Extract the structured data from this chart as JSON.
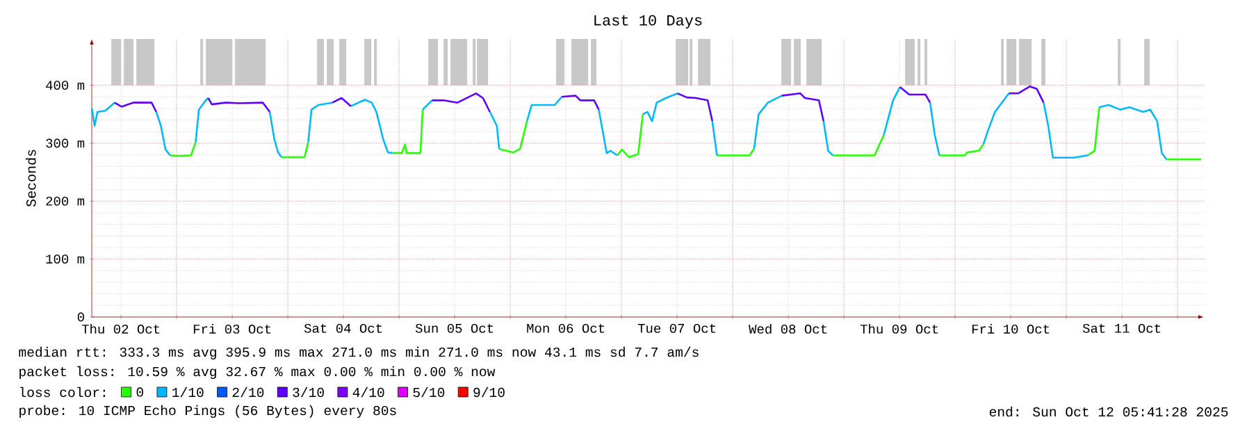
{
  "chart_data": {
    "type": "line",
    "title": "Last 10 Days",
    "ylabel": "Seconds",
    "legend_title": "loss color:",
    "legend": "bottom",
    "grid": true,
    "xlim": [
      "2025-10-02T05:41",
      "2025-10-12T05:41"
    ],
    "xticks": [
      {
        "value": "2025-10-02T12:00",
        "label": "Thu 02 Oct"
      },
      {
        "value": "2025-10-03T12:00",
        "label": "Fri 03 Oct"
      },
      {
        "value": "2025-10-04T12:00",
        "label": "Sat 04 Oct"
      },
      {
        "value": "2025-10-05T12:00",
        "label": "Sun 05 Oct"
      },
      {
        "value": "2025-10-06T12:00",
        "label": "Mon 06 Oct"
      },
      {
        "value": "2025-10-07T12:00",
        "label": "Tue 07 Oct"
      },
      {
        "value": "2025-10-08T12:00",
        "label": "Wed 08 Oct"
      },
      {
        "value": "2025-10-09T12:00",
        "label": "Thu 09 Oct"
      },
      {
        "value": "2025-10-10T12:00",
        "label": "Fri 10 Oct"
      },
      {
        "value": "2025-10-11T12:00",
        "label": "Sat 11 Oct"
      },
      {
        "value": "2025-10-03T00:00",
        "label": null
      },
      {
        "value": "2025-10-04T00:00",
        "label": null
      },
      {
        "value": "2025-10-05T00:00",
        "label": null
      },
      {
        "value": "2025-10-06T00:00",
        "label": null
      },
      {
        "value": "2025-10-07T00:00",
        "label": null
      },
      {
        "value": "2025-10-08T00:00",
        "label": null
      },
      {
        "value": "2025-10-09T00:00",
        "label": null
      },
      {
        "value": "2025-10-10T00:00",
        "label": null
      },
      {
        "value": "2025-10-11T00:00",
        "label": null
      },
      {
        "value": "2025-10-12T00:00",
        "label": null
      }
    ],
    "ylim": [
      0,
      480
    ],
    "yticks": [
      0,
      {
        "value": 100,
        "label": "100 m"
      },
      {
        "value": 200,
        "label": "200 m"
      },
      {
        "value": 300,
        "label": "300 m"
      },
      {
        "value": 400,
        "label": "400 m"
      }
    ],
    "x": [
      "2025-10-02T05:42",
      "2025-10-02T06:18",
      "2025-10-02T06:54",
      "2025-10-02T08:36",
      "2025-10-02T10:36",
      "2025-10-02T12:06",
      "2025-10-02T14:36",
      "2025-10-02T18:36",
      "2025-10-02T19:36",
      "2025-10-02T20:36",
      "2025-10-02T21:36",
      "2025-10-02T22:36",
      "2025-10-03T00:36",
      "2025-10-03T03:06",
      "2025-10-03T04:06",
      "2025-10-03T04:48",
      "2025-10-03T06:06",
      "2025-10-03T06:48",
      "2025-10-03T07:36",
      "2025-10-03T10:36",
      "2025-10-03T13:36",
      "2025-10-03T18:36",
      "2025-10-03T20:06",
      "2025-10-03T21:06",
      "2025-10-03T21:54",
      "2025-10-03T22:36",
      "2025-10-04T03:36",
      "2025-10-04T04:24",
      "2025-10-04T05:06",
      "2025-10-04T06:36",
      "2025-10-04T09:36",
      "2025-10-04T11:36",
      "2025-10-04T13:36",
      "2025-10-04T16:36",
      "2025-10-04T18:06",
      "2025-10-04T19:06",
      "2025-10-04T20:36",
      "2025-10-04T21:36",
      "2025-10-04T22:36",
      "2025-10-05T00:36",
      "2025-10-05T01:18",
      "2025-10-05T01:36",
      "2025-10-05T04:36",
      "2025-10-05T05:06",
      "2025-10-05T07:06",
      "2025-10-05T09:36",
      "2025-10-05T11:06",
      "2025-10-05T12:36",
      "2025-10-05T16:36",
      "2025-10-05T18:06",
      "2025-10-05T19:36",
      "2025-10-05T21:06",
      "2025-10-05T21:36",
      "2025-10-06T00:36",
      "2025-10-06T02:06",
      "2025-10-06T03:36",
      "2025-10-06T04:36",
      "2025-10-06T09:36",
      "2025-10-06T11:06",
      "2025-10-06T14:06",
      "2025-10-06T15:06",
      "2025-10-06T18:06",
      "2025-10-06T19:06",
      "2025-10-06T20:06",
      "2025-10-06T20:48",
      "2025-10-06T21:36",
      "2025-10-06T23:06",
      "2025-10-07T00:06",
      "2025-10-07T01:36",
      "2025-10-07T03:36",
      "2025-10-07T04:36",
      "2025-10-07T05:36",
      "2025-10-07T06:36",
      "2025-10-07T07:36",
      "2025-10-07T09:36",
      "2025-10-07T12:06",
      "2025-10-07T14:06",
      "2025-10-07T16:06",
      "2025-10-07T18:36",
      "2025-10-07T19:36",
      "2025-10-07T20:36",
      "2025-10-08T03:36",
      "2025-10-08T04:36",
      "2025-10-08T05:36",
      "2025-10-08T07:36",
      "2025-10-08T10:36",
      "2025-10-08T14:36",
      "2025-10-08T15:36",
      "2025-10-08T18:36",
      "2025-10-08T19:36",
      "2025-10-08T20:36",
      "2025-10-08T21:36",
      "2025-10-09T06:36",
      "2025-10-09T08:36",
      "2025-10-09T10:36",
      "2025-10-09T12:06",
      "2025-10-09T14:06",
      "2025-10-09T17:36",
      "2025-10-09T18:36",
      "2025-10-09T19:36",
      "2025-10-09T20:36",
      "2025-10-10T02:06",
      "2025-10-10T02:36",
      "2025-10-10T05:06",
      "2025-10-10T06:06",
      "2025-10-10T07:06",
      "2025-10-10T08:36",
      "2025-10-10T11:36",
      "2025-10-10T13:36",
      "2025-10-10T16:06",
      "2025-10-10T17:36",
      "2025-10-10T19:06",
      "2025-10-10T20:06",
      "2025-10-10T21:06",
      "2025-10-11T01:36",
      "2025-10-11T04:36",
      "2025-10-11T06:06",
      "2025-10-11T07:06",
      "2025-10-11T09:06",
      "2025-10-11T11:36",
      "2025-10-11T13:36",
      "2025-10-11T16:36",
      "2025-10-11T18:06",
      "2025-10-11T19:36",
      "2025-10-11T20:36",
      "2025-10-11T21:36",
      "2025-10-12T05:06"
    ],
    "series": [
      {
        "name": "0",
        "color": "#26ff00",
        "values": [
          null,
          null,
          null,
          null,
          null,
          null,
          null,
          null,
          null,
          null,
          null,
          279,
          278,
          279,
          302,
          null,
          null,
          null,
          null,
          null,
          null,
          null,
          null,
          null,
          null,
          276,
          276,
          302,
          null,
          null,
          null,
          null,
          null,
          null,
          null,
          null,
          null,
          null,
          283,
          283,
          298,
          283,
          283,
          358,
          null,
          null,
          null,
          null,
          null,
          null,
          null,
          null,
          290,
          284,
          290,
          338,
          null,
          null,
          null,
          null,
          null,
          null,
          null,
          null,
          null,
          null,
          279,
          289,
          276,
          281,
          350,
          null,
          null,
          null,
          null,
          null,
          null,
          null,
          null,
          null,
          279,
          279,
          290,
          null,
          null,
          null,
          null,
          null,
          null,
          null,
          null,
          279,
          279,
          314,
          null,
          null,
          null,
          null,
          null,
          null,
          279,
          279,
          284,
          287,
          298,
          null,
          null,
          null,
          null,
          null,
          null,
          null,
          null,
          null,
          null,
          279,
          287,
          362,
          null,
          null,
          null,
          null,
          null,
          null,
          null,
          272,
          272
        ]
      },
      {
        "name": "1/10",
        "color": "#00b8ff",
        "values": [
          360,
          330,
          354,
          356,
          370,
          null,
          null,
          null,
          354,
          330,
          289,
          279,
          null,
          null,
          302,
          358,
          372,
          378,
          null,
          null,
          null,
          null,
          354,
          306,
          284,
          276,
          null,
          302,
          358,
          366,
          370,
          null,
          364,
          375,
          370,
          354,
          306,
          284,
          283,
          null,
          null,
          null,
          null,
          358,
          374,
          null,
          null,
          null,
          null,
          null,
          354,
          330,
          290,
          null,
          null,
          338,
          366,
          366,
          380,
          null,
          null,
          null,
          358,
          314,
          283,
          287,
          279,
          null,
          null,
          null,
          350,
          354,
          338,
          370,
          378,
          386,
          null,
          null,
          null,
          338,
          279,
          null,
          290,
          350,
          370,
          382,
          null,
          null,
          null,
          338,
          287,
          279,
          null,
          314,
          374,
          397,
          null,
          null,
          370,
          314,
          279,
          null,
          null,
          null,
          298,
          322,
          354,
          386,
          null,
          null,
          null,
          370,
          330,
          275,
          275,
          279,
          null,
          362,
          366,
          358,
          362,
          354,
          358,
          338,
          283,
          272,
          null
        ]
      },
      {
        "name": "2/10",
        "color": "#0059ff",
        "values": [
          null,
          null,
          null,
          null,
          null,
          null,
          null,
          null,
          null,
          null,
          null,
          null,
          null,
          null,
          null,
          null,
          null,
          null,
          null,
          null,
          null,
          null,
          null,
          null,
          null,
          null,
          null,
          null,
          null,
          null,
          null,
          null,
          null,
          null,
          null,
          null,
          null,
          null,
          null,
          null,
          null,
          null,
          null,
          null,
          null,
          null,
          null,
          null,
          null,
          null,
          null,
          null,
          null,
          null,
          null,
          null,
          null,
          null,
          null,
          null,
          null,
          null,
          null,
          null,
          null,
          null,
          null,
          null,
          null,
          null,
          null,
          null,
          null,
          null,
          null,
          null,
          null,
          null,
          null,
          null,
          null,
          null,
          null,
          null,
          null,
          null,
          null,
          null,
          null,
          null,
          null,
          null,
          null,
          null,
          null,
          null,
          null,
          null,
          null,
          null,
          null,
          null,
          null,
          null,
          null,
          null,
          null,
          null,
          null,
          null,
          null,
          null,
          null,
          null,
          null,
          null,
          null,
          null,
          null,
          null,
          null,
          null,
          null,
          null,
          null,
          null,
          null
        ]
      },
      {
        "name": "3/10",
        "color": "#5e00ff",
        "values": [
          null,
          null,
          null,
          null,
          370,
          363,
          370,
          370,
          354,
          null,
          null,
          null,
          null,
          null,
          null,
          null,
          null,
          378,
          367,
          370,
          369,
          370,
          354,
          null,
          null,
          null,
          null,
          null,
          null,
          null,
          370,
          378,
          364,
          null,
          null,
          null,
          null,
          null,
          null,
          null,
          null,
          null,
          null,
          null,
          374,
          374,
          372,
          370,
          386,
          378,
          354,
          null,
          null,
          null,
          null,
          null,
          null,
          null,
          380,
          382,
          374,
          374,
          358,
          null,
          null,
          null,
          null,
          null,
          null,
          null,
          null,
          null,
          null,
          null,
          null,
          386,
          379,
          378,
          374,
          338,
          null,
          null,
          null,
          null,
          null,
          382,
          386,
          378,
          374,
          338,
          null,
          null,
          null,
          null,
          null,
          397,
          384,
          384,
          370,
          null,
          null,
          null,
          null,
          null,
          null,
          null,
          null,
          386,
          386,
          398,
          394,
          370,
          null,
          null,
          null,
          null,
          null,
          null,
          null,
          null,
          null,
          null,
          null,
          null,
          null,
          null,
          null
        ]
      },
      {
        "name": "4/10",
        "color": "#7e00ff",
        "values": [
          null,
          null,
          null,
          null,
          null,
          null,
          null,
          null,
          null,
          null,
          null,
          null,
          null,
          null,
          null,
          null,
          null,
          null,
          null,
          null,
          null,
          null,
          null,
          null,
          null,
          null,
          null,
          null,
          null,
          null,
          null,
          null,
          null,
          null,
          null,
          null,
          null,
          null,
          null,
          null,
          null,
          null,
          null,
          null,
          null,
          null,
          null,
          null,
          null,
          null,
          null,
          null,
          null,
          null,
          null,
          null,
          null,
          null,
          null,
          null,
          null,
          null,
          null,
          null,
          null,
          null,
          null,
          null,
          null,
          null,
          null,
          null,
          null,
          null,
          null,
          null,
          null,
          null,
          null,
          null,
          null,
          null,
          null,
          null,
          null,
          null,
          null,
          null,
          null,
          null,
          null,
          null,
          null,
          null,
          null,
          null,
          null,
          null,
          null,
          null,
          null,
          null,
          null,
          null,
          null,
          null,
          null,
          null,
          null,
          null,
          null,
          null,
          null,
          null,
          null,
          null,
          null,
          null,
          null,
          null,
          null,
          null,
          null,
          null,
          null,
          null,
          null
        ]
      },
      {
        "name": "5/10",
        "color": "#dd00ff",
        "values": [
          null,
          null,
          null,
          null,
          null,
          null,
          null,
          null,
          null,
          null,
          null,
          null,
          null,
          null,
          null,
          null,
          null,
          null,
          null,
          null,
          null,
          null,
          null,
          null,
          null,
          null,
          null,
          null,
          null,
          null,
          null,
          null,
          null,
          null,
          null,
          null,
          null,
          null,
          null,
          null,
          null,
          null,
          null,
          null,
          null,
          null,
          null,
          null,
          null,
          null,
          null,
          null,
          null,
          null,
          null,
          null,
          null,
          null,
          null,
          null,
          null,
          null,
          null,
          null,
          null,
          null,
          null,
          null,
          null,
          null,
          null,
          null,
          null,
          null,
          null,
          null,
          null,
          null,
          null,
          null,
          null,
          null,
          null,
          null,
          null,
          null,
          null,
          null,
          null,
          null,
          null,
          null,
          null,
          null,
          null,
          null,
          null,
          null,
          null,
          null,
          null,
          null,
          null,
          null,
          null,
          null,
          null,
          null,
          null,
          null,
          null,
          null,
          null,
          null,
          null,
          null,
          null,
          null,
          null,
          null,
          null,
          null,
          null,
          null,
          null,
          null,
          null
        ]
      },
      {
        "name": "9/10",
        "color": "#ff0000",
        "values": [
          null,
          null,
          null,
          null,
          null,
          null,
          null,
          null,
          null,
          null,
          null,
          null,
          null,
          null,
          null,
          null,
          null,
          null,
          null,
          null,
          null,
          null,
          null,
          null,
          null,
          null,
          null,
          null,
          null,
          null,
          null,
          null,
          null,
          null,
          null,
          null,
          null,
          null,
          null,
          null,
          null,
          null,
          null,
          null,
          null,
          null,
          null,
          null,
          null,
          null,
          null,
          null,
          null,
          null,
          null,
          null,
          null,
          null,
          null,
          null,
          null,
          null,
          null,
          null,
          null,
          null,
          null,
          null,
          null,
          null,
          null,
          null,
          null,
          null,
          null,
          null,
          null,
          null,
          null,
          null,
          null,
          null,
          null,
          null,
          null,
          null,
          null,
          null,
          null,
          null,
          null,
          null,
          null,
          null,
          null,
          null,
          null,
          null,
          null,
          null,
          null,
          null,
          null,
          null,
          null,
          null,
          null,
          null,
          null,
          null,
          null,
          null,
          null,
          null,
          null,
          null,
          null,
          null,
          null,
          null,
          null,
          null,
          null,
          null,
          null,
          null,
          null
        ]
      }
    ],
    "bands": [
      {
        "axis": "x",
        "from": "2025-10-02T09:54",
        "to": "2025-10-02T12:00",
        "color": "#c8c8c8"
      },
      {
        "axis": "x",
        "from": "2025-10-02T12:36",
        "to": "2025-10-02T14:42",
        "color": "#c8c8c8"
      },
      {
        "axis": "x",
        "from": "2025-10-02T15:18",
        "to": "2025-10-02T19:12",
        "color": "#c8c8c8"
      },
      {
        "axis": "x",
        "from": "2025-10-03T05:06",
        "to": "2025-10-03T05:42",
        "color": "#c8c8c8"
      },
      {
        "axis": "x",
        "from": "2025-10-03T06:18",
        "to": "2025-10-03T12:00",
        "color": "#c8c8c8"
      },
      {
        "axis": "x",
        "from": "2025-10-03T12:36",
        "to": "2025-10-03T19:12",
        "color": "#c8c8c8"
      },
      {
        "axis": "x",
        "from": "2025-10-04T06:18",
        "to": "2025-10-04T07:48",
        "color": "#c8c8c8"
      },
      {
        "axis": "x",
        "from": "2025-10-04T08:24",
        "to": "2025-10-04T09:54",
        "color": "#c8c8c8"
      },
      {
        "axis": "x",
        "from": "2025-10-04T11:06",
        "to": "2025-10-04T12:36",
        "color": "#c8c8c8"
      },
      {
        "axis": "x",
        "from": "2025-10-04T16:30",
        "to": "2025-10-04T18:00",
        "color": "#c8c8c8"
      },
      {
        "axis": "x",
        "from": "2025-10-04T18:36",
        "to": "2025-10-04T19:12",
        "color": "#c8c8c8"
      },
      {
        "axis": "x",
        "from": "2025-10-05T06:18",
        "to": "2025-10-05T08:24",
        "color": "#c8c8c8"
      },
      {
        "axis": "x",
        "from": "2025-10-05T09:36",
        "to": "2025-10-05T10:30",
        "color": "#c8c8c8"
      },
      {
        "axis": "x",
        "from": "2025-10-05T11:06",
        "to": "2025-10-05T14:42",
        "color": "#c8c8c8"
      },
      {
        "axis": "x",
        "from": "2025-10-05T15:54",
        "to": "2025-10-05T16:30",
        "color": "#c8c8c8"
      },
      {
        "axis": "x",
        "from": "2025-10-05T16:48",
        "to": "2025-10-05T19:12",
        "color": "#c8c8c8"
      },
      {
        "axis": "x",
        "from": "2025-10-06T09:54",
        "to": "2025-10-06T11:42",
        "color": "#c8c8c8"
      },
      {
        "axis": "x",
        "from": "2025-10-06T13:12",
        "to": "2025-10-06T16:48",
        "color": "#c8c8c8"
      },
      {
        "axis": "x",
        "from": "2025-10-06T17:24",
        "to": "2025-10-06T18:36",
        "color": "#c8c8c8"
      },
      {
        "axis": "x",
        "from": "2025-10-07T11:42",
        "to": "2025-10-07T14:24",
        "color": "#c8c8c8"
      },
      {
        "axis": "x",
        "from": "2025-10-07T14:42",
        "to": "2025-10-07T15:18",
        "color": "#c8c8c8"
      },
      {
        "axis": "x",
        "from": "2025-10-07T16:30",
        "to": "2025-10-07T19:12",
        "color": "#c8c8c8"
      },
      {
        "axis": "x",
        "from": "2025-10-08T10:30",
        "to": "2025-10-08T12:36",
        "color": "#c8c8c8"
      },
      {
        "axis": "x",
        "from": "2025-10-08T13:12",
        "to": "2025-10-08T14:42",
        "color": "#c8c8c8"
      },
      {
        "axis": "x",
        "from": "2025-10-08T15:54",
        "to": "2025-10-08T19:12",
        "color": "#c8c8c8"
      },
      {
        "axis": "x",
        "from": "2025-10-09T13:12",
        "to": "2025-10-09T15:18",
        "color": "#c8c8c8"
      },
      {
        "axis": "x",
        "from": "2025-10-09T15:54",
        "to": "2025-10-09T16:30",
        "color": "#c8c8c8"
      },
      {
        "axis": "x",
        "from": "2025-10-09T17:24",
        "to": "2025-10-09T18:00",
        "color": "#c8c8c8"
      },
      {
        "axis": "x",
        "from": "2025-10-10T09:54",
        "to": "2025-10-10T10:30",
        "color": "#c8c8c8"
      },
      {
        "axis": "x",
        "from": "2025-10-10T11:06",
        "to": "2025-10-10T13:12",
        "color": "#c8c8c8"
      },
      {
        "axis": "x",
        "from": "2025-10-10T13:48",
        "to": "2025-10-10T16:30",
        "color": "#c8c8c8"
      },
      {
        "axis": "x",
        "from": "2025-10-10T18:36",
        "to": "2025-10-10T19:30",
        "color": "#c8c8c8"
      },
      {
        "axis": "x",
        "from": "2025-10-11T11:06",
        "to": "2025-10-11T11:42",
        "color": "#c8c8c8"
      },
      {
        "axis": "x",
        "from": "2025-10-11T16:48",
        "to": "2025-10-11T18:00",
        "color": "#c8c8c8"
      }
    ],
    "annotations": [
      "median rtt: 333.3 ms avg 395.9 ms max 271.0 ms min 271.0 ms now 43.1 ms sd 7.7 am/s",
      "packet loss: 10.59 % avg 32.67 % max 0.00 % min 0.00 % now",
      "probe: 10 ICMP Echo Pings (56 Bytes) every 80s",
      "end: Sun Oct 12 05:41:28 2025"
    ]
  }
}
